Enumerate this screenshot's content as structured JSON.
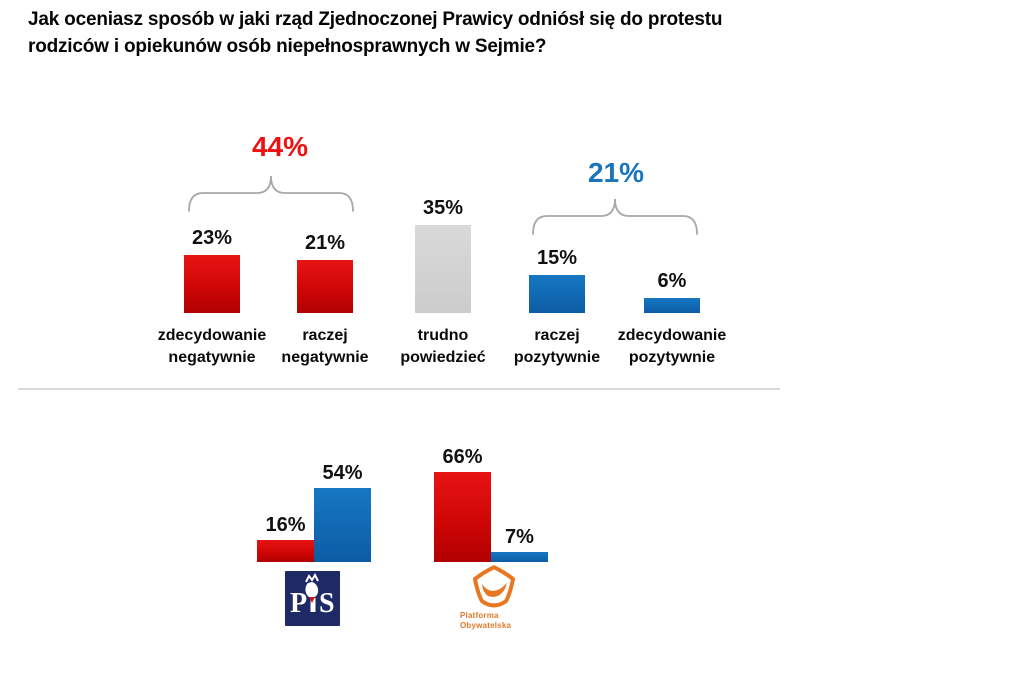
{
  "title": {
    "line1": "Jak oceniasz sposób w jaki rząd Zjednoczonej Prawicy odniósł się do protestu",
    "line2": "rodziców i opiekunów osób niepełnosprawnych w Sejmie?"
  },
  "colors": {
    "bar_red": "#cf0606",
    "bar_blue": "#1268b4",
    "bar_gray": "#d2d2d2",
    "sum_red_label": "#ee1111",
    "sum_blue_label": "#1b75bc",
    "pis_navy": "#1d2a66",
    "po_orange": "#e87722",
    "brace_gray": "#a8a8a8"
  },
  "chart_data": [
    {
      "type": "bar",
      "title": "",
      "categories": [
        "zdecydowanie negatywnie",
        "raczej negatywnie",
        "trudno powiedzieć",
        "raczej pozytywnie",
        "zdecydowanie pozytywnie"
      ],
      "values": [
        23,
        21,
        35,
        15,
        6
      ],
      "value_labels": [
        "23%",
        "21%",
        "35%",
        "15%",
        "6%"
      ],
      "bar_colors": [
        "red",
        "red",
        "gray",
        "blue",
        "blue"
      ],
      "grid": false,
      "axes_visible": false,
      "annotations": [
        {
          "label": "44%",
          "over_category_indices": [
            0,
            1
          ],
          "color": "red"
        },
        {
          "label": "21%",
          "over_category_indices": [
            3,
            4
          ],
          "color": "blue"
        }
      ]
    },
    {
      "type": "bar",
      "title": "",
      "categories": [
        "PiS",
        "Platforma Obywatelska"
      ],
      "series": [
        {
          "color": "red",
          "values": [
            16,
            66
          ],
          "value_labels": [
            "16%",
            "66%"
          ]
        },
        {
          "color": "blue",
          "values": [
            54,
            7
          ],
          "value_labels": [
            "54%",
            "7%"
          ]
        }
      ],
      "grid": false,
      "axes_visible": false
    }
  ],
  "logos": {
    "pis_label": "PiS",
    "po_line1": "Platforma",
    "po_line2": "Obywatelska"
  }
}
